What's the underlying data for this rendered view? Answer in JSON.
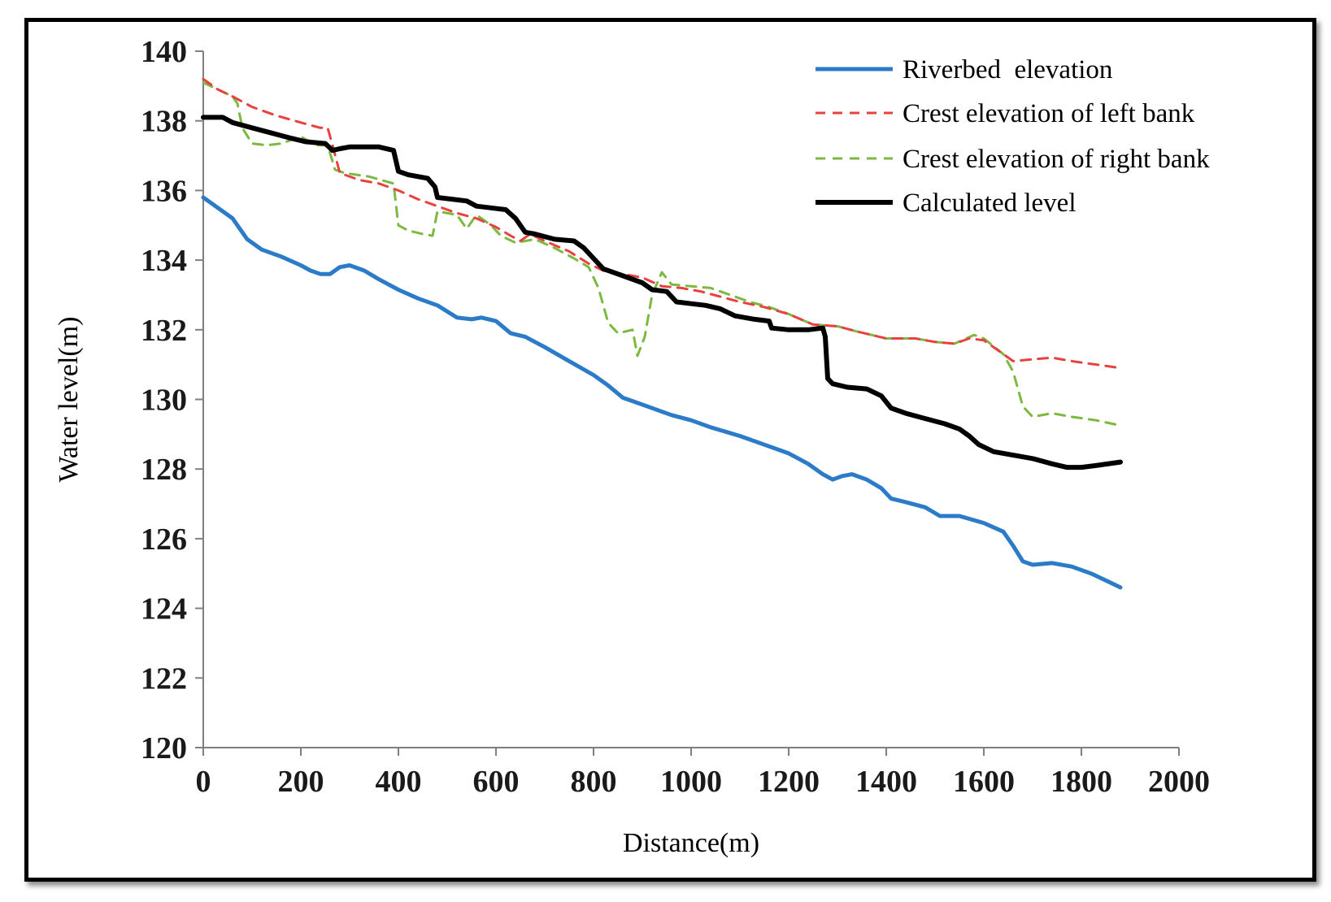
{
  "chart_data": {
    "type": "line",
    "title": "",
    "xlabel": "Distance(m)",
    "ylabel": "Water level(m)",
    "xlim": [
      0,
      2000
    ],
    "ylim": [
      120,
      140
    ],
    "xticks": [
      "0",
      "200",
      "400",
      "600",
      "800",
      "1000",
      "1200",
      "1400",
      "1600",
      "1800",
      "2000"
    ],
    "yticks": [
      "120",
      "122",
      "124",
      "126",
      "128",
      "130",
      "132",
      "134",
      "136",
      "138",
      "140"
    ],
    "legend_position": "top-right",
    "series": [
      {
        "name": "Riverbed  elevation",
        "color": "#2b7bc9",
        "style": "solid",
        "points": [
          [
            0,
            135.8
          ],
          [
            30,
            135.5
          ],
          [
            60,
            135.2
          ],
          [
            90,
            134.6
          ],
          [
            120,
            134.3
          ],
          [
            160,
            134.1
          ],
          [
            200,
            133.85
          ],
          [
            220,
            133.7
          ],
          [
            240,
            133.6
          ],
          [
            260,
            133.6
          ],
          [
            280,
            133.8
          ],
          [
            300,
            133.85
          ],
          [
            330,
            133.7
          ],
          [
            360,
            133.45
          ],
          [
            400,
            133.15
          ],
          [
            440,
            132.9
          ],
          [
            480,
            132.7
          ],
          [
            520,
            132.35
          ],
          [
            550,
            132.3
          ],
          [
            570,
            132.35
          ],
          [
            600,
            132.25
          ],
          [
            630,
            131.9
          ],
          [
            660,
            131.8
          ],
          [
            700,
            131.5
          ],
          [
            750,
            131.1
          ],
          [
            800,
            130.7
          ],
          [
            830,
            130.4
          ],
          [
            860,
            130.05
          ],
          [
            880,
            129.95
          ],
          [
            920,
            129.75
          ],
          [
            960,
            129.55
          ],
          [
            1000,
            129.4
          ],
          [
            1040,
            129.2
          ],
          [
            1100,
            128.95
          ],
          [
            1150,
            128.7
          ],
          [
            1200,
            128.45
          ],
          [
            1240,
            128.15
          ],
          [
            1270,
            127.85
          ],
          [
            1290,
            127.7
          ],
          [
            1310,
            127.8
          ],
          [
            1330,
            127.85
          ],
          [
            1360,
            127.7
          ],
          [
            1390,
            127.45
          ],
          [
            1410,
            127.15
          ],
          [
            1440,
            127.05
          ],
          [
            1480,
            126.9
          ],
          [
            1510,
            126.65
          ],
          [
            1550,
            126.65
          ],
          [
            1600,
            126.45
          ],
          [
            1640,
            126.2
          ],
          [
            1660,
            125.8
          ],
          [
            1680,
            125.35
          ],
          [
            1700,
            125.25
          ],
          [
            1740,
            125.3
          ],
          [
            1780,
            125.2
          ],
          [
            1820,
            125.0
          ],
          [
            1850,
            124.8
          ],
          [
            1880,
            124.6
          ]
        ]
      },
      {
        "name": "Crest elevation of left bank",
        "color": "#e8423f",
        "style": "dashed",
        "points": [
          [
            0,
            139.2
          ],
          [
            30,
            138.9
          ],
          [
            60,
            138.7
          ],
          [
            100,
            138.4
          ],
          [
            150,
            138.15
          ],
          [
            200,
            137.95
          ],
          [
            240,
            137.8
          ],
          [
            255,
            137.8
          ],
          [
            265,
            137.3
          ],
          [
            280,
            136.5
          ],
          [
            320,
            136.3
          ],
          [
            360,
            136.2
          ],
          [
            400,
            136.0
          ],
          [
            440,
            135.75
          ],
          [
            480,
            135.55
          ],
          [
            520,
            135.35
          ],
          [
            560,
            135.2
          ],
          [
            600,
            134.95
          ],
          [
            630,
            134.7
          ],
          [
            650,
            134.55
          ],
          [
            670,
            134.75
          ],
          [
            700,
            134.55
          ],
          [
            750,
            134.25
          ],
          [
            790,
            133.9
          ],
          [
            820,
            133.7
          ],
          [
            860,
            133.6
          ],
          [
            900,
            133.5
          ],
          [
            940,
            133.25
          ],
          [
            980,
            133.2
          ],
          [
            1020,
            133.1
          ],
          [
            1060,
            132.95
          ],
          [
            1100,
            132.8
          ],
          [
            1150,
            132.65
          ],
          [
            1200,
            132.45
          ],
          [
            1250,
            132.15
          ],
          [
            1300,
            132.1
          ],
          [
            1340,
            131.95
          ],
          [
            1400,
            131.75
          ],
          [
            1460,
            131.75
          ],
          [
            1500,
            131.65
          ],
          [
            1540,
            131.6
          ],
          [
            1570,
            131.75
          ],
          [
            1600,
            131.7
          ],
          [
            1630,
            131.4
          ],
          [
            1660,
            131.1
          ],
          [
            1700,
            131.15
          ],
          [
            1740,
            131.2
          ],
          [
            1780,
            131.1
          ],
          [
            1830,
            131.0
          ],
          [
            1880,
            130.9
          ]
        ]
      },
      {
        "name": "Crest elevation of right bank",
        "color": "#7cb940",
        "style": "dashed",
        "points": [
          [
            0,
            139.1
          ],
          [
            30,
            138.9
          ],
          [
            60,
            138.7
          ],
          [
            70,
            138.5
          ],
          [
            80,
            137.8
          ],
          [
            100,
            137.35
          ],
          [
            130,
            137.3
          ],
          [
            160,
            137.35
          ],
          [
            200,
            137.55
          ],
          [
            230,
            137.3
          ],
          [
            255,
            137.3
          ],
          [
            270,
            136.6
          ],
          [
            290,
            136.5
          ],
          [
            340,
            136.4
          ],
          [
            390,
            136.2
          ],
          [
            400,
            135.0
          ],
          [
            420,
            134.85
          ],
          [
            450,
            134.75
          ],
          [
            470,
            134.7
          ],
          [
            480,
            135.4
          ],
          [
            520,
            135.3
          ],
          [
            540,
            134.9
          ],
          [
            560,
            135.3
          ],
          [
            590,
            135.0
          ],
          [
            610,
            134.7
          ],
          [
            640,
            134.5
          ],
          [
            680,
            134.6
          ],
          [
            720,
            134.35
          ],
          [
            760,
            134.05
          ],
          [
            790,
            133.8
          ],
          [
            810,
            133.2
          ],
          [
            830,
            132.2
          ],
          [
            850,
            131.9
          ],
          [
            880,
            132.0
          ],
          [
            890,
            131.25
          ],
          [
            905,
            131.8
          ],
          [
            920,
            133.0
          ],
          [
            940,
            133.65
          ],
          [
            960,
            133.3
          ],
          [
            1000,
            133.25
          ],
          [
            1040,
            133.2
          ],
          [
            1080,
            133.0
          ],
          [
            1120,
            132.8
          ],
          [
            1160,
            132.65
          ],
          [
            1200,
            132.45
          ],
          [
            1250,
            132.15
          ],
          [
            1300,
            132.1
          ],
          [
            1340,
            131.95
          ],
          [
            1400,
            131.75
          ],
          [
            1460,
            131.75
          ],
          [
            1500,
            131.65
          ],
          [
            1540,
            131.6
          ],
          [
            1580,
            131.85
          ],
          [
            1600,
            131.75
          ],
          [
            1640,
            131.3
          ],
          [
            1660,
            130.8
          ],
          [
            1680,
            129.8
          ],
          [
            1700,
            129.5
          ],
          [
            1740,
            129.6
          ],
          [
            1780,
            129.5
          ],
          [
            1830,
            129.4
          ],
          [
            1880,
            129.25
          ]
        ]
      },
      {
        "name": "Calculated level",
        "color": "#000000",
        "style": "solid",
        "points": [
          [
            0,
            138.1
          ],
          [
            40,
            138.1
          ],
          [
            60,
            137.95
          ],
          [
            100,
            137.8
          ],
          [
            140,
            137.65
          ],
          [
            180,
            137.5
          ],
          [
            210,
            137.4
          ],
          [
            250,
            137.35
          ],
          [
            265,
            137.15
          ],
          [
            280,
            137.2
          ],
          [
            300,
            137.25
          ],
          [
            330,
            137.25
          ],
          [
            360,
            137.25
          ],
          [
            390,
            137.15
          ],
          [
            400,
            136.55
          ],
          [
            420,
            136.45
          ],
          [
            460,
            136.35
          ],
          [
            475,
            136.1
          ],
          [
            480,
            135.8
          ],
          [
            510,
            135.75
          ],
          [
            540,
            135.7
          ],
          [
            560,
            135.55
          ],
          [
            590,
            135.5
          ],
          [
            620,
            135.45
          ],
          [
            640,
            135.2
          ],
          [
            660,
            134.8
          ],
          [
            680,
            134.75
          ],
          [
            720,
            134.6
          ],
          [
            760,
            134.55
          ],
          [
            780,
            134.35
          ],
          [
            800,
            134.05
          ],
          [
            820,
            133.75
          ],
          [
            850,
            133.6
          ],
          [
            870,
            133.5
          ],
          [
            900,
            133.35
          ],
          [
            920,
            133.15
          ],
          [
            950,
            133.1
          ],
          [
            970,
            132.8
          ],
          [
            1000,
            132.75
          ],
          [
            1030,
            132.7
          ],
          [
            1060,
            132.6
          ],
          [
            1090,
            132.4
          ],
          [
            1130,
            132.3
          ],
          [
            1160,
            132.25
          ],
          [
            1165,
            132.05
          ],
          [
            1200,
            132.0
          ],
          [
            1240,
            132.0
          ],
          [
            1270,
            132.05
          ],
          [
            1275,
            131.8
          ],
          [
            1280,
            130.6
          ],
          [
            1290,
            130.45
          ],
          [
            1320,
            130.35
          ],
          [
            1360,
            130.3
          ],
          [
            1390,
            130.1
          ],
          [
            1410,
            129.75
          ],
          [
            1440,
            129.6
          ],
          [
            1480,
            129.45
          ],
          [
            1520,
            129.3
          ],
          [
            1550,
            129.15
          ],
          [
            1570,
            128.95
          ],
          [
            1590,
            128.7
          ],
          [
            1620,
            128.5
          ],
          [
            1660,
            128.4
          ],
          [
            1700,
            128.3
          ],
          [
            1740,
            128.15
          ],
          [
            1770,
            128.05
          ],
          [
            1800,
            128.05
          ],
          [
            1830,
            128.1
          ],
          [
            1880,
            128.2
          ]
        ]
      }
    ]
  }
}
